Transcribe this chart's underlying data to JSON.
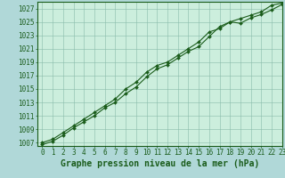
{
  "title": "Graphe pression niveau de la mer (hPa)",
  "xlim": [
    -0.5,
    23
  ],
  "ylim": [
    1006.5,
    1028.0
  ],
  "yticks": [
    1007,
    1009,
    1011,
    1013,
    1015,
    1017,
    1019,
    1021,
    1023,
    1025,
    1027
  ],
  "xticks": [
    0,
    1,
    2,
    3,
    4,
    5,
    6,
    7,
    8,
    9,
    10,
    11,
    12,
    13,
    14,
    15,
    16,
    17,
    18,
    19,
    20,
    21,
    22,
    23
  ],
  "bg_color": "#b0d8d8",
  "plot_bg_color": "#cceedd",
  "line_color": "#1a5c1a",
  "marker_color": "#1a5c1a",
  "grid_color": "#88bbaa",
  "series1": {
    "x": [
      0,
      1,
      2,
      3,
      4,
      5,
      6,
      7,
      8,
      9,
      10,
      11,
      12,
      13,
      14,
      15,
      16,
      17,
      18,
      19,
      20,
      21,
      22,
      23
    ],
    "y": [
      1007.0,
      1007.5,
      1008.5,
      1009.5,
      1010.5,
      1011.5,
      1012.5,
      1013.5,
      1015.0,
      1016.0,
      1017.5,
      1018.5,
      1019.0,
      1020.0,
      1021.0,
      1022.0,
      1023.5,
      1024.0,
      1025.0,
      1025.5,
      1026.0,
      1026.5,
      1027.5,
      1027.8
    ]
  },
  "series2": {
    "x": [
      0,
      1,
      2,
      3,
      4,
      5,
      6,
      7,
      8,
      9,
      10,
      11,
      12,
      13,
      14,
      15,
      16,
      17,
      18,
      19,
      20,
      21,
      22,
      23
    ],
    "y": [
      1006.7,
      1007.2,
      1008.1,
      1009.2,
      1010.1,
      1011.0,
      1012.2,
      1013.0,
      1014.3,
      1015.3,
      1016.8,
      1018.0,
      1018.6,
      1019.6,
      1020.6,
      1021.3,
      1022.8,
      1024.3,
      1025.0,
      1024.8,
      1025.6,
      1026.1,
      1026.8,
      1027.6
    ]
  },
  "title_fontsize": 7,
  "tick_fontsize": 5.5,
  "font_family": "monospace"
}
